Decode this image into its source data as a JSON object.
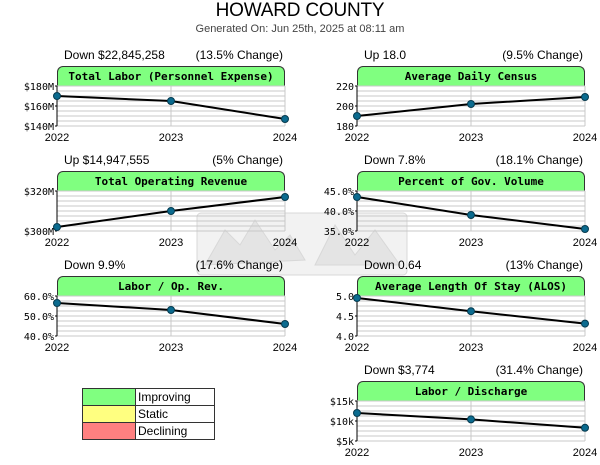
{
  "header": {
    "title": "HOWARD COUNTY",
    "subtitle": "Generated On: Jun 25th, 2025 at 08:11 am"
  },
  "colors": {
    "improving": "#80ff80",
    "static": "#ffff80",
    "declining": "#ff8080",
    "line": "#000000",
    "marker": "#0b6b8f",
    "grid": "#c8c8c8"
  },
  "legend": [
    {
      "label": "Improving",
      "color": "#80ff80"
    },
    {
      "label": "Static",
      "color": "#ffff80"
    },
    {
      "label": "Declining",
      "color": "#ff8080"
    }
  ],
  "chart_data": [
    {
      "type": "line",
      "title": "Total Labor (Personnel Expense)",
      "change_left": "Down $22,845,258",
      "change_right": "(13.5% Change)",
      "status": "improving",
      "x": [
        "2022",
        "2023",
        "2024"
      ],
      "values": [
        170,
        165,
        147
      ],
      "ylim": [
        140,
        180
      ],
      "yticks": [
        140,
        160,
        180
      ],
      "ytick_labels": [
        "$140M",
        "$160M",
        "$180M"
      ],
      "grid": true
    },
    {
      "type": "line",
      "title": "Average Daily Census",
      "change_left": "Up 18.0",
      "change_right": "(9.5% Change)",
      "status": "improving",
      "x": [
        "2022",
        "2023",
        "2024"
      ],
      "values": [
        190,
        202,
        209
      ],
      "ylim": [
        180,
        220
      ],
      "yticks": [
        180,
        200,
        220
      ],
      "ytick_labels": [
        "180",
        "200",
        "220"
      ],
      "grid": true
    },
    {
      "type": "line",
      "title": "Total Operating Revenue",
      "change_left": "Up $14,947,555",
      "change_right": "(5% Change)",
      "status": "improving",
      "x": [
        "2022",
        "2023",
        "2024"
      ],
      "values": [
        302,
        310,
        317
      ],
      "ylim": [
        300,
        320
      ],
      "yticks": [
        300,
        320
      ],
      "ytick_labels": [
        "$300M",
        "$320M"
      ],
      "grid": true
    },
    {
      "type": "line",
      "title": "Percent of Gov. Volume",
      "change_left": "Down 7.8%",
      "change_right": "(18.1% Change)",
      "status": "improving",
      "x": [
        "2022",
        "2023",
        "2024"
      ],
      "values": [
        43.5,
        39.0,
        35.5
      ],
      "ylim": [
        35,
        45
      ],
      "yticks": [
        35,
        40,
        45
      ],
      "ytick_labels": [
        "35.0%",
        "40.0%",
        "45.0%"
      ],
      "grid": true
    },
    {
      "type": "line",
      "title": "Labor / Op. Rev.",
      "change_left": "Down 9.9%",
      "change_right": "(17.6% Change)",
      "status": "improving",
      "x": [
        "2022",
        "2023",
        "2024"
      ],
      "values": [
        56.5,
        53.0,
        46.0
      ],
      "ylim": [
        40,
        60
      ],
      "yticks": [
        40,
        50,
        60
      ],
      "ytick_labels": [
        "40.0%",
        "50.0%",
        "60.0%"
      ],
      "grid": true
    },
    {
      "type": "line",
      "title": "Average Length Of Stay (ALOS)",
      "change_left": "Down 0.64",
      "change_right": "(13% Change)",
      "status": "improving",
      "x": [
        "2022",
        "2023",
        "2024"
      ],
      "values": [
        4.95,
        4.62,
        4.31
      ],
      "ylim": [
        4.0,
        5.0
      ],
      "yticks": [
        4.0,
        4.5,
        5.0
      ],
      "ytick_labels": [
        "4.0",
        "4.5",
        "5.0"
      ],
      "grid": true
    },
    {
      "type": "line",
      "title": "Labor / Discharge",
      "change_left": "Down $3,774",
      "change_right": "(31.4% Change)",
      "status": "improving",
      "x": [
        "2022",
        "2023",
        "2024"
      ],
      "values": [
        12000,
        10400,
        8300
      ],
      "ylim": [
        5000,
        15000
      ],
      "yticks": [
        5000,
        10000,
        15000
      ],
      "ytick_labels": [
        "$5k",
        "$10k",
        "$15k"
      ],
      "grid": true
    }
  ]
}
